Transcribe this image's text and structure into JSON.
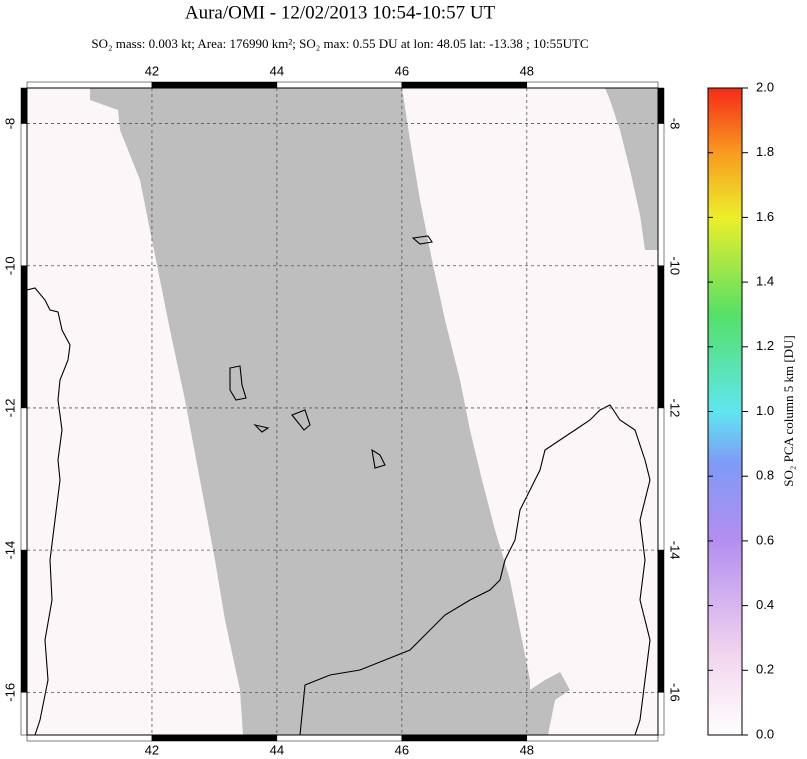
{
  "chart_data": {
    "type": "map",
    "title": "Aura/OMI - 12/02/2013 10:54-10:57 UT",
    "subtitle": "SO₂ mass: 0.003 kt; Area: 176990 km²; SO₂ max: 0.55 DU at lon: 48.05 lat: -13.38 ; 10:55UTC",
    "xlim": [
      40,
      50.1
    ],
    "ylim": [
      -16.6,
      -7.5
    ],
    "xticks": [
      42,
      44,
      46,
      48
    ],
    "yticks": [
      -8,
      -10,
      -12,
      -14,
      -16
    ],
    "grid": true,
    "colorbar": {
      "label": "SO₂ PCA column 5 km [DU]",
      "lim": [
        0,
        2
      ],
      "ticks": [
        {
          "value": 0,
          "label": "0.0"
        },
        {
          "value": 0.2,
          "label": "0.2"
        },
        {
          "value": 0.4,
          "label": "0.4"
        },
        {
          "value": 0.6,
          "label": "0.6"
        },
        {
          "value": 0.8,
          "label": "0.8"
        },
        {
          "value": 1,
          "label": "1.0"
        },
        {
          "value": 1.2,
          "label": "1.2"
        },
        {
          "value": 1.4,
          "label": "1.4"
        },
        {
          "value": 1.6,
          "label": "1.6"
        },
        {
          "value": 1.8,
          "label": "1.8"
        },
        {
          "value": 2,
          "label": "2.0"
        }
      ]
    }
  }
}
